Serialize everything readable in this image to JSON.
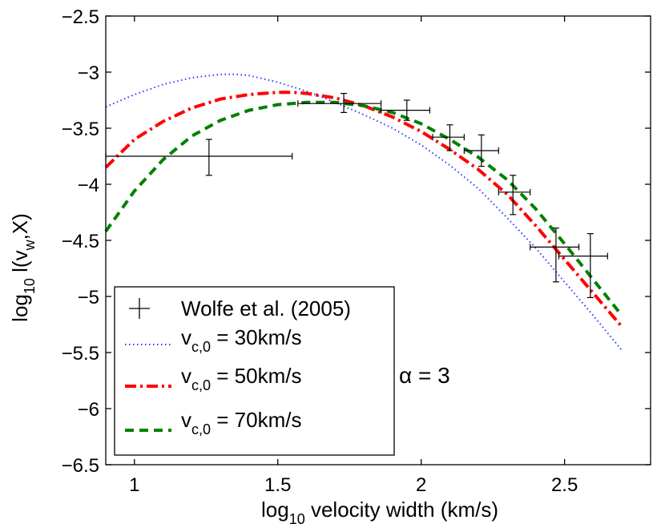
{
  "chart_data": {
    "type": "line",
    "xlabel": {
      "pre": "log",
      "sub": "10",
      "post": " velocity width (km/s)"
    },
    "ylabel": {
      "pre": "log",
      "sub1": "10",
      "mid": " l(v",
      "sub2": "w",
      "post": ",X)"
    },
    "xlim": [
      0.9,
      2.8
    ],
    "ylim": [
      -6.5,
      -2.5
    ],
    "xticks": [
      1,
      1.5,
      2,
      2.5
    ],
    "xtick_labels": [
      "1",
      "1.5",
      "2",
      "2.5"
    ],
    "yticks": [
      -2.5,
      -3,
      -3.5,
      -4,
      -4.5,
      -5,
      -5.5,
      -6,
      -6.5
    ],
    "ytick_labels": [
      "−2.5",
      "−3",
      "−3.5",
      "−4",
      "−4.5",
      "−5",
      "−5.5",
      "−6",
      "−6.5"
    ],
    "grid": false,
    "legend_position": "bottom-left",
    "annotation": "α = 3",
    "observations": {
      "legend": "Wolfe et al. (2005)",
      "color": "#000000",
      "points": [
        {
          "x": 1.26,
          "y": -3.75,
          "xerr": [
            0.36,
            0.29
          ],
          "yerr": [
            0.17,
            0.15
          ]
        },
        {
          "x": 1.73,
          "y": -3.28,
          "xerr": [
            0.16,
            0.13
          ],
          "yerr": [
            0.08,
            0.09
          ]
        },
        {
          "x": 1.95,
          "y": -3.34,
          "xerr": [
            0.09,
            0.08
          ],
          "yerr": [
            0.09,
            0.09
          ]
        },
        {
          "x": 2.1,
          "y": -3.58,
          "xerr": [
            0.06,
            0.05
          ],
          "yerr": [
            0.12,
            0.11
          ]
        },
        {
          "x": 2.21,
          "y": -3.7,
          "xerr": [
            0.06,
            0.06
          ],
          "yerr": [
            0.14,
            0.14
          ]
        },
        {
          "x": 2.32,
          "y": -4.07,
          "xerr": [
            0.05,
            0.06
          ],
          "yerr": [
            0.2,
            0.15
          ]
        },
        {
          "x": 2.47,
          "y": -4.56,
          "xerr": [
            0.09,
            0.08
          ],
          "yerr": [
            0.31,
            0.17
          ]
        },
        {
          "x": 2.59,
          "y": -4.64,
          "xerr": [
            0.11,
            0.06
          ],
          "yerr": [
            0.37,
            0.2
          ]
        }
      ]
    },
    "series": [
      {
        "legend_pre": "v",
        "legend_sub": "c,0",
        "legend_post": " = 30km/s",
        "color": "#2d3cff",
        "style": "dotted",
        "x": [
          0.9,
          1.0,
          1.1,
          1.2,
          1.3,
          1.35,
          1.4,
          1.5,
          1.6,
          1.7,
          1.8,
          1.9,
          2.0,
          2.1,
          2.2,
          2.3,
          2.4,
          2.5,
          2.6,
          2.7
        ],
        "y": [
          -3.31,
          -3.2,
          -3.11,
          -3.05,
          -3.02,
          -3.02,
          -3.03,
          -3.09,
          -3.17,
          -3.27,
          -3.38,
          -3.5,
          -3.65,
          -3.83,
          -4.04,
          -4.3,
          -4.57,
          -4.87,
          -5.17,
          -5.48
        ]
      },
      {
        "legend_pre": "v",
        "legend_sub": "c,0",
        "legend_post": " = 50km/s",
        "color": "#ff0000",
        "style": "dashdot",
        "x": [
          0.9,
          1.0,
          1.1,
          1.2,
          1.3,
          1.4,
          1.5,
          1.55,
          1.6,
          1.7,
          1.8,
          1.9,
          2.0,
          2.1,
          2.2,
          2.3,
          2.4,
          2.5,
          2.6,
          2.7
        ],
        "y": [
          -3.85,
          -3.6,
          -3.44,
          -3.32,
          -3.24,
          -3.2,
          -3.18,
          -3.18,
          -3.19,
          -3.23,
          -3.3,
          -3.4,
          -3.53,
          -3.69,
          -3.87,
          -4.09,
          -4.37,
          -4.67,
          -4.97,
          -5.27
        ]
      },
      {
        "legend_pre": "v",
        "legend_sub": "c,0",
        "legend_post": " = 70km/s",
        "color": "#008000",
        "style": "dashed",
        "x": [
          0.9,
          1.0,
          1.1,
          1.2,
          1.3,
          1.4,
          1.5,
          1.6,
          1.7,
          1.8,
          1.9,
          2.0,
          2.1,
          2.2,
          2.3,
          2.4,
          2.5,
          2.6,
          2.7
        ],
        "y": [
          -4.42,
          -4.06,
          -3.78,
          -3.57,
          -3.43,
          -3.34,
          -3.29,
          -3.27,
          -3.27,
          -3.3,
          -3.36,
          -3.46,
          -3.6,
          -3.76,
          -3.96,
          -4.22,
          -4.53,
          -4.85,
          -5.17
        ]
      }
    ]
  }
}
